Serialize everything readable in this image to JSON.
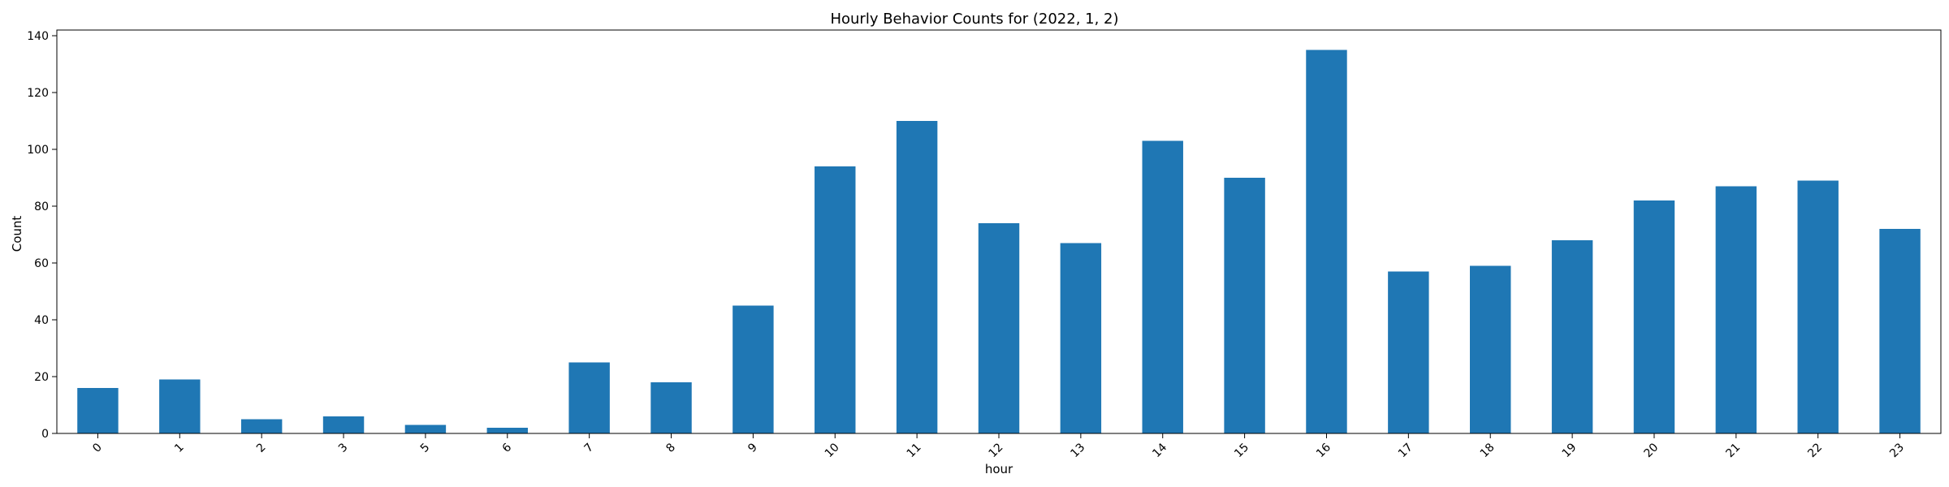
{
  "chart_data": {
    "type": "bar",
    "title": "Hourly Behavior Counts for (2022, 1, 2)",
    "xlabel": "hour",
    "ylabel": "Count",
    "categories": [
      "0",
      "1",
      "2",
      "3",
      "5",
      "6",
      "7",
      "8",
      "9",
      "10",
      "11",
      "12",
      "13",
      "14",
      "15",
      "16",
      "17",
      "18",
      "19",
      "20",
      "21",
      "22",
      "23"
    ],
    "values": [
      16,
      19,
      5,
      6,
      3,
      2,
      25,
      18,
      45,
      94,
      110,
      74,
      67,
      103,
      90,
      135,
      57,
      59,
      68,
      82,
      87,
      89,
      72
    ],
    "ylim": [
      0,
      142
    ],
    "yticks": [
      0,
      20,
      40,
      60,
      80,
      100,
      120,
      140
    ],
    "grid": false,
    "legend": "none",
    "bar_color": "#1f77b4",
    "xtick_rotation": 45
  }
}
